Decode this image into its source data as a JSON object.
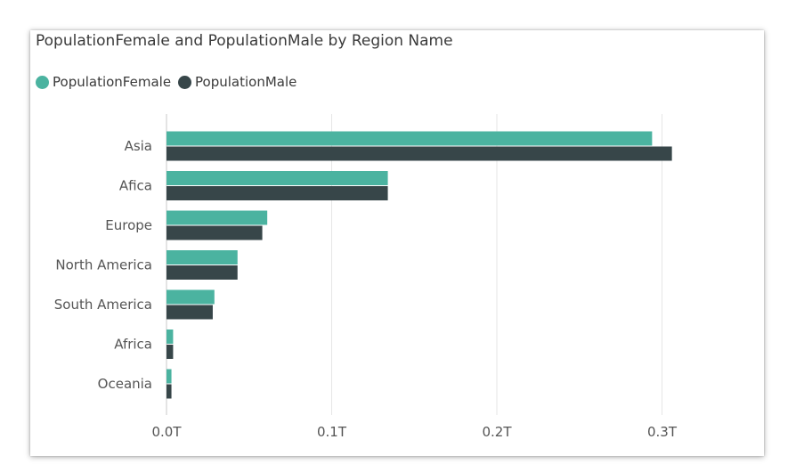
{
  "chart_data": {
    "type": "bar",
    "orientation": "horizontal",
    "title": "PopulationFemale and PopulationMale by Region Name",
    "categories": [
      "Asia",
      "Afica",
      "Europe",
      "North America",
      "South America",
      "Africa",
      "Oceania"
    ],
    "series": [
      {
        "name": "PopulationFemale",
        "color": "#4bb3a0",
        "values": [
          0.294,
          0.134,
          0.061,
          0.043,
          0.029,
          0.004,
          0.003
        ]
      },
      {
        "name": "PopulationMale",
        "color": "#374649",
        "values": [
          0.306,
          0.134,
          0.058,
          0.043,
          0.028,
          0.004,
          0.003
        ]
      }
    ],
    "value_unit": "trillions",
    "xlim": [
      0,
      0.3
    ],
    "xticks": [
      {
        "value": 0,
        "label": "0.0T"
      },
      {
        "value": 0.1,
        "label": "0.1T"
      },
      {
        "value": 0.2,
        "label": "0.2T"
      },
      {
        "value": 0.3,
        "label": "0.3T"
      }
    ],
    "grid": true,
    "legend_position": "top-left"
  }
}
